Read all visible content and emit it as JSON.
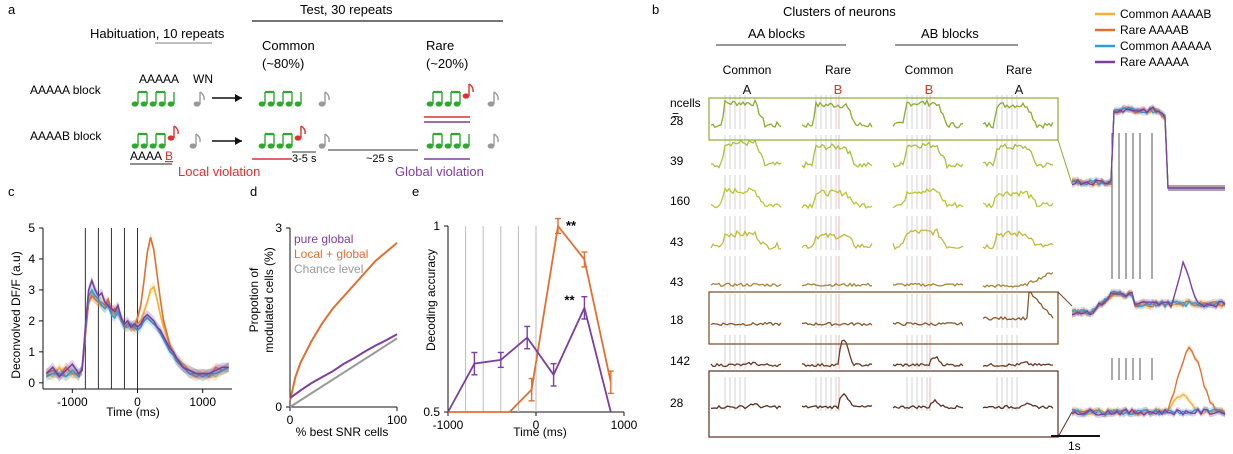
{
  "panel_a": {
    "label": "a",
    "habituation": "Habituation, 10 repeats",
    "test": "Test, 30 repeats",
    "common": "Common",
    "common_pct": "(~80%)",
    "rare": "Rare",
    "rare_pct": "(~20%)",
    "aaaaa_block": "AAAAA block",
    "aaaab_block": "AAAAB block",
    "aaaaa_label": "AAAAA",
    "wn": "WN",
    "aaaa_seq": "AAAA",
    "b_letter": "B",
    "gap_short": "3-5 s",
    "gap_long": "~25 s",
    "local_violation": "Local violation",
    "global_violation": "Global violation"
  },
  "panel_b": {
    "label": "b",
    "title": "Clusters of neurons",
    "aa_blocks": "AA blocks",
    "ab_blocks": "AB blocks",
    "col_headers": [
      "Common",
      "Rare",
      "Common",
      "Rare"
    ],
    "col_letters": [
      "A",
      "B",
      "B",
      "A"
    ],
    "ncells_label_1": "ncells",
    "ncells_label_2": "=",
    "ncells": [
      "28",
      "39",
      "160",
      "43",
      "43",
      "18",
      "142",
      "28"
    ],
    "scalebar": "1s",
    "legend": [
      {
        "name": "Common AAAAB",
        "color": "#f2b134"
      },
      {
        "name": "Rare AAAAB",
        "color": "#e07030"
      },
      {
        "name": "Common AAAAA",
        "color": "#2f9ed8"
      },
      {
        "name": "Rare AAAAA",
        "color": "#7b3fa0"
      }
    ],
    "row_colors": [
      "#8aae2c",
      "#a7c23a",
      "#b8c72e",
      "#c2b93b",
      "#a88436",
      "#8a5a2e",
      "#6a3a22",
      "#5a3020"
    ]
  },
  "panel_c": {
    "label": "c",
    "ylabel": "Deconvolved DF/F (a.u)",
    "xlabel": "Time (ms)",
    "xticks": [
      "-1000",
      "0",
      "1000"
    ],
    "yticks": [
      "0",
      "1",
      "2",
      "3",
      "4",
      "5"
    ]
  },
  "panel_d": {
    "label": "d",
    "ylabel_1": "Propotion of",
    "ylabel_2": "modulated cells (%)",
    "xlabel": "% best SNR cells",
    "xticks": [
      "0",
      "100"
    ],
    "yticks": [
      "0",
      "3"
    ],
    "legend": [
      {
        "name": "pure global",
        "color": "#7b3fa0"
      },
      {
        "name": "Local + global",
        "color": "#e07030"
      },
      {
        "name": "Chance level",
        "color": "#999999"
      }
    ]
  },
  "panel_e": {
    "label": "e",
    "ylabel": "Decoding accuracy",
    "xlabel": "Time (ms)",
    "xticks": [
      "-1000",
      "0",
      "1000"
    ],
    "yticks": [
      "0.5",
      "1"
    ],
    "sig1": "**",
    "sig2": "**"
  },
  "chart_data": [
    {
      "type": "line",
      "panel": "c",
      "xlabel": "Time (ms)",
      "ylabel": "Deconvolved DF/F (a.u)",
      "xlim": [
        -1450,
        1450
      ],
      "ylim": [
        -0.2,
        5
      ],
      "stimulus_onsets_ms": [
        -800,
        -600,
        -400,
        -200,
        0
      ],
      "series": [
        {
          "name": "Common AAAAB",
          "color": "#f2b134",
          "x": [
            -1400,
            -1300,
            -1200,
            -1100,
            -1000,
            -900,
            -850,
            -800,
            -750,
            -700,
            -650,
            -600,
            -550,
            -500,
            -450,
            -400,
            -350,
            -300,
            -250,
            -200,
            -150,
            -100,
            -50,
            0,
            50,
            100,
            150,
            200,
            250,
            300,
            350,
            400,
            450,
            500,
            550,
            600,
            700,
            800,
            900,
            1000,
            1100,
            1200,
            1300,
            1400
          ],
          "y": [
            0.3,
            0.2,
            0.5,
            0.2,
            0.3,
            0.2,
            0.5,
            1.6,
            2.6,
            2.9,
            2.7,
            2.6,
            2.5,
            2.4,
            2.6,
            2.3,
            2.2,
            2.4,
            2.0,
            1.8,
            1.9,
            1.8,
            1.7,
            1.9,
            2.0,
            2.3,
            2.6,
            3.0,
            3.1,
            2.7,
            2.2,
            1.8,
            1.5,
            1.2,
            1.0,
            0.8,
            0.6,
            0.4,
            0.3,
            0.2,
            0.3,
            0.2,
            0.4,
            0.5
          ]
        },
        {
          "name": "Rare AAAAB",
          "color": "#e07030",
          "x": [
            -1400,
            -1300,
            -1200,
            -1100,
            -1000,
            -900,
            -850,
            -800,
            -750,
            -700,
            -650,
            -600,
            -550,
            -500,
            -450,
            -400,
            -350,
            -300,
            -250,
            -200,
            -150,
            -100,
            -50,
            0,
            50,
            100,
            150,
            200,
            250,
            300,
            350,
            400,
            450,
            500,
            550,
            600,
            700,
            800,
            900,
            1000,
            1100,
            1200,
            1300,
            1400
          ],
          "y": [
            0.3,
            0.4,
            0.2,
            0.5,
            0.3,
            0.3,
            0.4,
            1.5,
            2.6,
            2.8,
            2.7,
            2.6,
            2.6,
            2.5,
            2.7,
            2.3,
            2.4,
            2.2,
            2.1,
            1.8,
            1.9,
            1.8,
            1.8,
            2.1,
            2.5,
            3.3,
            4.2,
            4.7,
            4.3,
            3.5,
            2.7,
            2.0,
            1.6,
            1.2,
            0.9,
            0.7,
            0.5,
            0.3,
            0.2,
            0.3,
            0.2,
            0.5,
            0.4,
            0.5
          ]
        },
        {
          "name": "Common AAAAA",
          "color": "#2f9ed8",
          "x": [
            -1400,
            -1300,
            -1200,
            -1100,
            -1000,
            -900,
            -850,
            -800,
            -750,
            -700,
            -650,
            -600,
            -550,
            -500,
            -450,
            -400,
            -350,
            -300,
            -250,
            -200,
            -150,
            -100,
            -50,
            0,
            50,
            100,
            150,
            200,
            250,
            300,
            350,
            400,
            450,
            500,
            550,
            600,
            700,
            800,
            900,
            1000,
            1100,
            1200,
            1300,
            1400
          ],
          "y": [
            0.2,
            0.3,
            0.3,
            0.2,
            0.4,
            0.2,
            0.5,
            1.7,
            2.8,
            3.0,
            2.8,
            2.7,
            2.5,
            2.4,
            2.5,
            2.2,
            2.1,
            2.3,
            2.0,
            1.8,
            1.8,
            1.9,
            1.8,
            1.7,
            1.8,
            2.0,
            2.1,
            2.0,
            1.9,
            1.8,
            1.6,
            1.4,
            1.2,
            1.0,
            0.9,
            0.7,
            0.5,
            0.3,
            0.3,
            0.2,
            0.3,
            0.3,
            0.4,
            0.5
          ]
        },
        {
          "name": "Rare AAAAA",
          "color": "#7b3fa0",
          "x": [
            -1400,
            -1300,
            -1200,
            -1100,
            -1000,
            -900,
            -850,
            -800,
            -750,
            -700,
            -650,
            -600,
            -550,
            -500,
            -450,
            -400,
            -350,
            -300,
            -250,
            -200,
            -150,
            -100,
            -50,
            0,
            50,
            100,
            150,
            200,
            250,
            300,
            350,
            400,
            450,
            500,
            550,
            600,
            700,
            800,
            900,
            1000,
            1100,
            1200,
            1300,
            1400
          ],
          "y": [
            0.3,
            0.5,
            0.2,
            0.4,
            0.6,
            0.3,
            0.4,
            1.8,
            3.0,
            3.3,
            3.0,
            2.8,
            2.9,
            2.6,
            2.5,
            2.4,
            2.3,
            2.5,
            2.1,
            1.9,
            2.0,
            1.8,
            1.9,
            1.8,
            1.9,
            2.1,
            2.2,
            2.1,
            2.0,
            1.8,
            1.7,
            1.5,
            1.3,
            1.1,
            1.0,
            0.8,
            0.5,
            0.4,
            0.3,
            0.3,
            0.3,
            0.4,
            0.5,
            0.5
          ]
        }
      ]
    },
    {
      "type": "line",
      "panel": "d",
      "xlabel": "% best SNR cells",
      "ylabel": "Propotion of modulated cells (%)",
      "xlim": [
        0,
        100
      ],
      "ylim": [
        0,
        3
      ],
      "series": [
        {
          "name": "pure global",
          "color": "#7b3fa0",
          "x": [
            0,
            10,
            20,
            30,
            40,
            50,
            60,
            70,
            80,
            90,
            100
          ],
          "y": [
            0.15,
            0.28,
            0.4,
            0.5,
            0.6,
            0.72,
            0.82,
            0.93,
            1.03,
            1.12,
            1.22
          ]
        },
        {
          "name": "Local + global",
          "color": "#e07030",
          "x": [
            0,
            5,
            10,
            20,
            30,
            40,
            50,
            60,
            70,
            80,
            90,
            100
          ],
          "y": [
            0.1,
            0.5,
            0.75,
            1.1,
            1.4,
            1.65,
            1.85,
            2.05,
            2.25,
            2.45,
            2.6,
            2.75
          ]
        },
        {
          "name": "Chance level",
          "color": "#999999",
          "x": [
            0,
            100
          ],
          "y": [
            0.0,
            1.15
          ]
        }
      ]
    },
    {
      "type": "line",
      "panel": "e",
      "xlabel": "Time (ms)",
      "ylabel": "Decoding accuracy",
      "xlim": [
        -1000,
        1000
      ],
      "ylim": [
        0.5,
        1
      ],
      "stimulus_onsets_ms": [
        -800,
        -600,
        -400,
        -200,
        0
      ],
      "significance": [
        {
          "x": 250,
          "label": "**"
        },
        {
          "x": 550,
          "label": "**"
        }
      ],
      "series": [
        {
          "name": "Rare AAAAB",
          "color": "#e07030",
          "x": [
            -1000,
            -600,
            -300,
            -50,
            250,
            550,
            850
          ],
          "y": [
            0.5,
            0.5,
            0.5,
            0.56,
            1.0,
            0.91,
            0.58
          ],
          "err": [
            0,
            0,
            0,
            0.03,
            0.02,
            0.02,
            0.03
          ]
        },
        {
          "name": "Rare AAAAA",
          "color": "#7b3fa0",
          "x": [
            -1000,
            -700,
            -400,
            -100,
            200,
            550,
            850
          ],
          "y": [
            0.5,
            0.63,
            0.64,
            0.7,
            0.6,
            0.78,
            0.5
          ],
          "err": [
            0,
            0.03,
            0.02,
            0.03,
            0.03,
            0.03,
            0
          ]
        }
      ]
    }
  ]
}
